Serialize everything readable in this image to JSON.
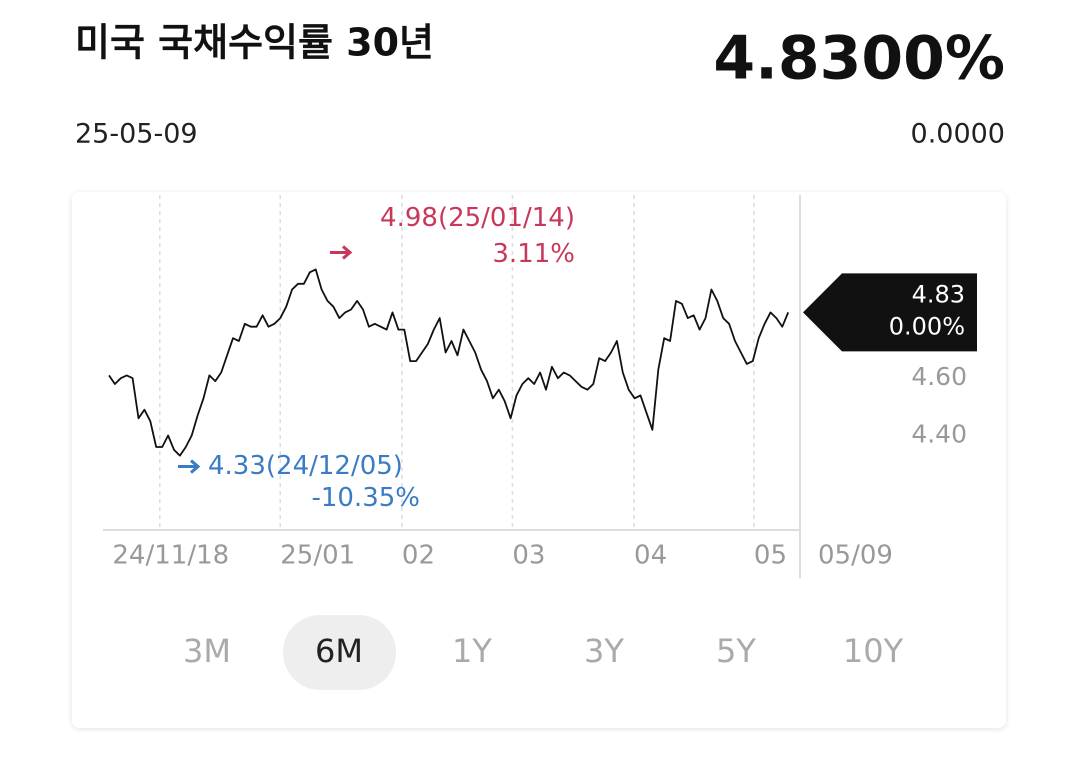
{
  "header": {
    "title": "미국 국채수익률 30년",
    "date": "25-05-09",
    "price": "4.8300%",
    "change": "0.0000"
  },
  "chart_data": {
    "type": "line",
    "color": "#111111",
    "values": [
      4.61,
      4.58,
      4.6,
      4.61,
      4.6,
      4.46,
      4.49,
      4.45,
      4.36,
      4.36,
      4.4,
      4.35,
      4.33,
      4.36,
      4.4,
      4.47,
      4.53,
      4.61,
      4.59,
      4.62,
      4.68,
      4.74,
      4.73,
      4.79,
      4.78,
      4.78,
      4.82,
      4.78,
      4.79,
      4.81,
      4.85,
      4.91,
      4.93,
      4.93,
      4.97,
      4.98,
      4.91,
      4.87,
      4.85,
      4.81,
      4.83,
      4.84,
      4.87,
      4.84,
      4.78,
      4.79,
      4.78,
      4.77,
      4.83,
      4.77,
      4.77,
      4.66,
      4.66,
      4.69,
      4.72,
      4.77,
      4.81,
      4.69,
      4.73,
      4.68,
      4.77,
      4.73,
      4.69,
      4.63,
      4.59,
      4.53,
      4.56,
      4.52,
      4.46,
      4.54,
      4.58,
      4.6,
      4.58,
      4.62,
      4.56,
      4.64,
      4.6,
      4.62,
      4.61,
      4.59,
      4.57,
      4.56,
      4.58,
      4.67,
      4.66,
      4.69,
      4.73,
      4.62,
      4.56,
      4.53,
      4.54,
      4.48,
      4.42,
      4.63,
      4.74,
      4.73,
      4.87,
      4.86,
      4.81,
      4.82,
      4.77,
      4.81,
      4.91,
      4.87,
      4.81,
      4.79,
      4.73,
      4.69,
      4.65,
      4.66,
      4.74,
      4.79,
      4.83,
      4.81,
      4.78,
      4.83
    ],
    "xlim": [
      0,
      117
    ],
    "xticks": [
      {
        "value": 8.6,
        "label": "24/11/18"
      },
      {
        "value": 29,
        "label": "25/01"
      },
      {
        "value": 49.6,
        "label": "02"
      },
      {
        "value": 68.3,
        "label": "03"
      },
      {
        "value": 88.9,
        "label": "04"
      },
      {
        "value": 109.2,
        "label": "05"
      },
      {
        "value": 117,
        "label": "05/09"
      }
    ],
    "ylim": [
      4.07,
      5.24
    ],
    "yticks": [
      {
        "value": 4.4,
        "label": "4.40"
      },
      {
        "value": 4.6,
        "label": "4.60"
      }
    ],
    "high": {
      "value": 4.98,
      "label": "4.98(25/01/14)",
      "change": "3.11%",
      "color": "#c8385a"
    },
    "low": {
      "value": 4.33,
      "label": "4.33(24/12/05)",
      "change": "-10.35%",
      "color": "#3a7cc4"
    },
    "last": {
      "value": 4.83,
      "change": "0.00%"
    }
  },
  "range_tabs": {
    "options": [
      "3M",
      "6M",
      "1Y",
      "3Y",
      "5Y",
      "10Y"
    ],
    "selected": "6M"
  }
}
